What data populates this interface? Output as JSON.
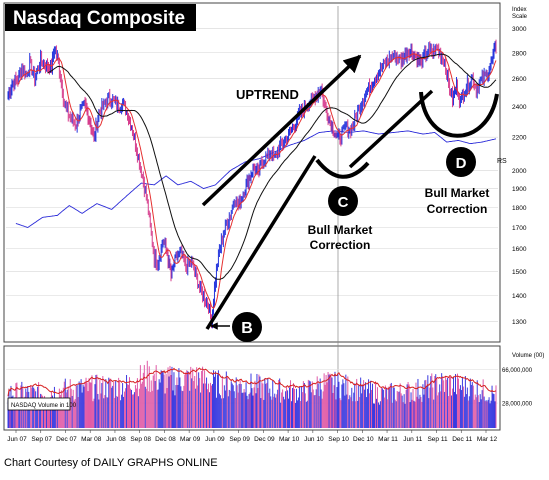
{
  "chart_data": {
    "type": "bar",
    "title": "Nasdaq Composite",
    "scale_label": [
      "Index",
      "Scale"
    ],
    "price_axis": {
      "ticks": [
        1300,
        1400,
        1500,
        1600,
        1700,
        1800,
        1900,
        2000,
        2200,
        2400,
        2600,
        2800,
        3000
      ],
      "scale": "log",
      "range": [
        1240,
        3200
      ]
    },
    "volume_axis": {
      "label": "Volume (00)",
      "ticks": [
        {
          "label": "66,000,000",
          "value": 66
        },
        {
          "label": "28,000,000",
          "value": 28
        }
      ],
      "range": [
        0,
        90
      ]
    },
    "x_labels": [
      "Jun 07",
      "Sep 07",
      "Dec 07",
      "Mar 08",
      "Jun 08",
      "Sep 08",
      "Dec 08",
      "Mar 09",
      "Jun 09",
      "Sep 09",
      "Dec 09",
      "Mar 10",
      "Jun 10",
      "Sep 10",
      "Dec 10",
      "Mar 11",
      "Jun 11",
      "Sep 11",
      "Dec 11",
      "Mar 12"
    ],
    "rs_label": "RS",
    "volume_legend": "NASDAQ Volume in 100",
    "annotations": {
      "uptrend": "UPTREND",
      "b": "B",
      "c": "C",
      "d": "D",
      "bull_c": [
        "Bull Market",
        "Correction"
      ],
      "bull_d": [
        "Bull Market",
        "Correction"
      ]
    },
    "price_anchors": [
      [
        0,
        2480
      ],
      [
        4,
        2560
      ],
      [
        10,
        2600
      ],
      [
        14,
        2680
      ],
      [
        19,
        2630
      ],
      [
        22,
        2720
      ],
      [
        27,
        2600
      ],
      [
        33,
        2740
      ],
      [
        38,
        2700
      ],
      [
        44,
        2690
      ],
      [
        47,
        2840
      ],
      [
        50,
        2760
      ],
      [
        53,
        2620
      ],
      [
        57,
        2420
      ],
      [
        61,
        2350
      ],
      [
        65,
        2310
      ],
      [
        69,
        2280
      ],
      [
        73,
        2370
      ],
      [
        78,
        2410
      ],
      [
        83,
        2300
      ],
      [
        87,
        2190
      ],
      [
        92,
        2360
      ],
      [
        97,
        2410
      ],
      [
        102,
        2460
      ],
      [
        107,
        2440
      ],
      [
        112,
        2400
      ],
      [
        116,
        2430
      ],
      [
        121,
        2350
      ],
      [
        125,
        2270
      ],
      [
        129,
        2160
      ],
      [
        134,
        2020
      ],
      [
        137,
        1940
      ],
      [
        140,
        1860
      ],
      [
        144,
        1700
      ],
      [
        148,
        1560
      ],
      [
        152,
        1540
      ],
      [
        157,
        1640
      ],
      [
        161,
        1580
      ],
      [
        165,
        1480
      ],
      [
        170,
        1560
      ],
      [
        175,
        1580
      ],
      [
        180,
        1520
      ],
      [
        186,
        1540
      ],
      [
        191,
        1470
      ],
      [
        195,
        1420
      ],
      [
        199,
        1390
      ],
      [
        203,
        1360
      ],
      [
        206,
        1300
      ],
      [
        209,
        1430
      ],
      [
        213,
        1570
      ],
      [
        217,
        1650
      ],
      [
        221,
        1720
      ],
      [
        225,
        1760
      ],
      [
        229,
        1850
      ],
      [
        233,
        1810
      ],
      [
        237,
        1860
      ],
      [
        241,
        1920
      ],
      [
        245,
        1970
      ],
      [
        249,
        2020
      ],
      [
        253,
        1980
      ],
      [
        257,
        2050
      ],
      [
        262,
        2080
      ],
      [
        266,
        2110
      ],
      [
        270,
        2070
      ],
      [
        274,
        2130
      ],
      [
        279,
        2170
      ],
      [
        283,
        2200
      ],
      [
        287,
        2250
      ],
      [
        291,
        2290
      ],
      [
        295,
        2350
      ],
      [
        299,
        2380
      ],
      [
        303,
        2420
      ],
      [
        307,
        2440
      ],
      [
        311,
        2480
      ],
      [
        314,
        2500
      ],
      [
        317,
        2530
      ],
      [
        320,
        2420
      ],
      [
        323,
        2360
      ],
      [
        326,
        2300
      ],
      [
        330,
        2240
      ],
      [
        334,
        2190
      ],
      [
        338,
        2220
      ],
      [
        342,
        2270
      ],
      [
        346,
        2240
      ],
      [
        350,
        2290
      ],
      [
        354,
        2370
      ],
      [
        358,
        2430
      ],
      [
        362,
        2490
      ],
      [
        366,
        2540
      ],
      [
        370,
        2590
      ],
      [
        374,
        2640
      ],
      [
        378,
        2680
      ],
      [
        382,
        2720
      ],
      [
        386,
        2750
      ],
      [
        390,
        2780
      ],
      [
        394,
        2760
      ],
      [
        398,
        2740
      ],
      [
        402,
        2790
      ],
      [
        406,
        2820
      ],
      [
        410,
        2800
      ],
      [
        414,
        2760
      ],
      [
        418,
        2720
      ],
      [
        422,
        2780
      ],
      [
        426,
        2820
      ],
      [
        430,
        2800
      ],
      [
        434,
        2840
      ],
      [
        438,
        2780
      ],
      [
        442,
        2730
      ],
      [
        446,
        2560
      ],
      [
        450,
        2450
      ],
      [
        454,
        2550
      ],
      [
        458,
        2430
      ],
      [
        462,
        2520
      ],
      [
        466,
        2560
      ],
      [
        470,
        2610
      ],
      [
        474,
        2520
      ],
      [
        478,
        2580
      ],
      [
        482,
        2610
      ],
      [
        486,
        2650
      ],
      [
        490,
        2740
      ],
      [
        494,
        2860
      ]
    ],
    "vol_anchors": [
      [
        0,
        48
      ],
      [
        30,
        47
      ],
      [
        60,
        52
      ],
      [
        90,
        55
      ],
      [
        120,
        57
      ],
      [
        140,
        70
      ],
      [
        160,
        64
      ],
      [
        190,
        68
      ],
      [
        210,
        60
      ],
      [
        240,
        58
      ],
      [
        270,
        52
      ],
      [
        300,
        49
      ],
      [
        320,
        60
      ],
      [
        350,
        54
      ],
      [
        380,
        46
      ],
      [
        410,
        50
      ],
      [
        440,
        60
      ],
      [
        470,
        55
      ],
      [
        494,
        45
      ]
    ],
    "rs_anchors": [
      [
        8,
        1720
      ],
      [
        20,
        1700
      ],
      [
        35,
        1750
      ],
      [
        50,
        1760
      ],
      [
        62,
        1810
      ],
      [
        75,
        1770
      ],
      [
        90,
        1820
      ],
      [
        105,
        1790
      ],
      [
        120,
        1860
      ],
      [
        135,
        1930
      ],
      [
        148,
        1920
      ],
      [
        160,
        1970
      ],
      [
        172,
        1920
      ],
      [
        185,
        1940
      ],
      [
        198,
        1900
      ],
      [
        210,
        1920
      ],
      [
        225,
        2000
      ],
      [
        240,
        2050
      ],
      [
        255,
        2070
      ],
      [
        270,
        2110
      ],
      [
        285,
        2150
      ],
      [
        300,
        2180
      ],
      [
        315,
        2230
      ],
      [
        330,
        2240
      ],
      [
        345,
        2230
      ],
      [
        360,
        2240
      ],
      [
        375,
        2220
      ],
      [
        390,
        2230
      ],
      [
        405,
        2240
      ],
      [
        420,
        2220
      ],
      [
        432,
        2230
      ],
      [
        444,
        2170
      ],
      [
        456,
        2180
      ],
      [
        468,
        2160
      ],
      [
        480,
        2170
      ],
      [
        494,
        2190
      ]
    ]
  },
  "footer": {
    "courtesy": "Chart Courtesy of DAILY GRAPHS ONLINE"
  }
}
